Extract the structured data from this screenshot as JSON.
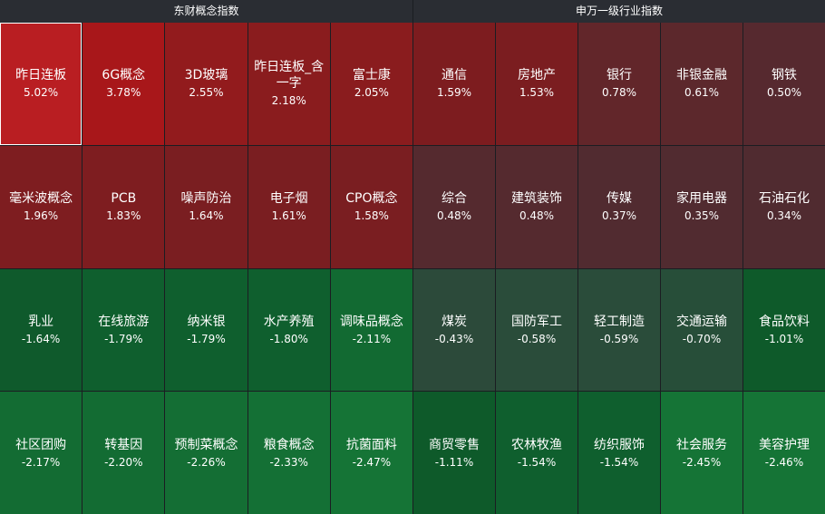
{
  "left_panel": {
    "title": "东财概念指数",
    "tiles": [
      {
        "name": "昨日连板",
        "change": "5.02%",
        "color": "#b91e22",
        "selected": true
      },
      {
        "name": "6G概念",
        "change": "3.78%",
        "color": "#a8171a"
      },
      {
        "name": "3D玻璃",
        "change": "2.55%",
        "color": "#921b1d"
      },
      {
        "name": "昨日连板_含一字",
        "change": "2.18%",
        "color": "#8a1c1e"
      },
      {
        "name": "富士康",
        "change": "2.05%",
        "color": "#8a1c1e"
      },
      {
        "name": "毫米波概念",
        "change": "1.96%",
        "color": "#7e1d20"
      },
      {
        "name": "PCB",
        "change": "1.83%",
        "color": "#7e1d20"
      },
      {
        "name": "噪声防治",
        "change": "1.64%",
        "color": "#7a1e21"
      },
      {
        "name": "电子烟",
        "change": "1.61%",
        "color": "#7a1e21"
      },
      {
        "name": "CPO概念",
        "change": "1.58%",
        "color": "#7a1e21"
      },
      {
        "name": "乳业",
        "change": "-1.64%",
        "color": "#0f5a2c"
      },
      {
        "name": "在线旅游",
        "change": "-1.79%",
        "color": "#0f5f2e"
      },
      {
        "name": "纳米银",
        "change": "-1.79%",
        "color": "#0f5f2e"
      },
      {
        "name": "水产养殖",
        "change": "-1.80%",
        "color": "#0f5f2e"
      },
      {
        "name": "调味品概念",
        "change": "-2.11%",
        "color": "#126a32"
      },
      {
        "name": "社区团购",
        "change": "-2.17%",
        "color": "#136c33"
      },
      {
        "name": "转基因",
        "change": "-2.20%",
        "color": "#136c33"
      },
      {
        "name": "预制菜概念",
        "change": "-2.26%",
        "color": "#146e34"
      },
      {
        "name": "粮食概念",
        "change": "-2.33%",
        "color": "#147035"
      },
      {
        "name": "抗菌面料",
        "change": "-2.47%",
        "color": "#157436"
      }
    ]
  },
  "right_panel": {
    "title": "申万一级行业指数",
    "tiles": [
      {
        "name": "通信",
        "change": "1.59%",
        "color": "#7d1c1f"
      },
      {
        "name": "房地产",
        "change": "1.53%",
        "color": "#7b1d20"
      },
      {
        "name": "银行",
        "change": "0.78%",
        "color": "#62262a"
      },
      {
        "name": "非银金融",
        "change": "0.61%",
        "color": "#5c282c"
      },
      {
        "name": "钢铁",
        "change": "0.50%",
        "color": "#56292f"
      },
      {
        "name": "综合",
        "change": "0.48%",
        "color": "#552a2f"
      },
      {
        "name": "建筑装饰",
        "change": "0.48%",
        "color": "#552a2f"
      },
      {
        "name": "传媒",
        "change": "0.37%",
        "color": "#512b30"
      },
      {
        "name": "家用电器",
        "change": "0.35%",
        "color": "#512b30"
      },
      {
        "name": "石油石化",
        "change": "0.34%",
        "color": "#502b30"
      },
      {
        "name": "煤炭",
        "change": "-0.43%",
        "color": "#2c4a3a"
      },
      {
        "name": "国防军工",
        "change": "-0.58%",
        "color": "#2a4c3a"
      },
      {
        "name": "轻工制造",
        "change": "-0.59%",
        "color": "#2a4c3a"
      },
      {
        "name": "交通运输",
        "change": "-0.70%",
        "color": "#274e39"
      },
      {
        "name": "食品饮料",
        "change": "-1.01%",
        "color": "#0e5a2a"
      },
      {
        "name": "商贸零售",
        "change": "-1.11%",
        "color": "#0e5a2a"
      },
      {
        "name": "农林牧渔",
        "change": "-1.54%",
        "color": "#0f5f2e"
      },
      {
        "name": "纺织服饰",
        "change": "-1.54%",
        "color": "#0f5f2e"
      },
      {
        "name": "社会服务",
        "change": "-2.45%",
        "color": "#157436"
      },
      {
        "name": "美容护理",
        "change": "-2.46%",
        "color": "#157436"
      }
    ]
  }
}
